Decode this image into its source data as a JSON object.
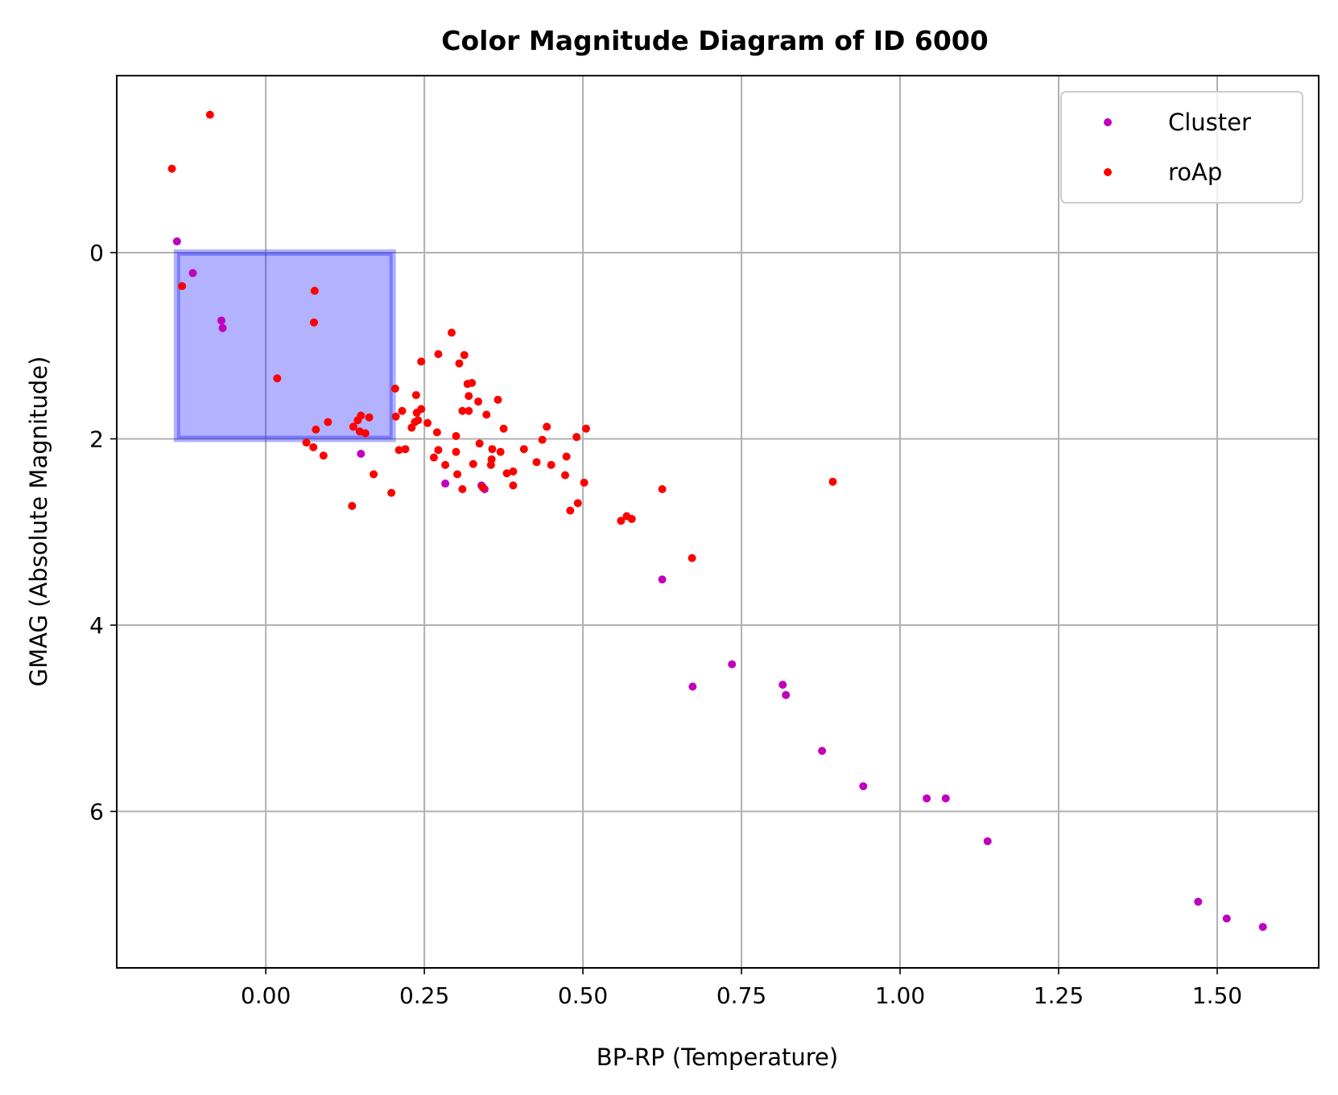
{
  "chart_data": {
    "type": "scatter",
    "title": "Color Magnitude Diagram of ID 6000",
    "xlabel": "BP-RP (Temperature)",
    "ylabel": "GMAG (Absolute Magnitude)",
    "xlim": [
      -0.235,
      1.66
    ],
    "ylim": [
      7.68,
      -1.9
    ],
    "y_inverted": true,
    "grid": true,
    "legend_position": "top-right",
    "xticks": [
      0.0,
      0.25,
      0.5,
      0.75,
      1.0,
      1.25,
      1.5
    ],
    "xtick_labels": [
      "0.00",
      "0.25",
      "0.50",
      "0.75",
      "1.00",
      "1.25",
      "1.50"
    ],
    "yticks": [
      0,
      2,
      4,
      6
    ],
    "ytick_labels": [
      "0",
      "2",
      "4",
      "6"
    ],
    "region": {
      "x0": -0.14,
      "x1": 0.2,
      "y0": 0.0,
      "y1": 2.0,
      "color": "#0000ff",
      "alpha": 0.3
    },
    "series": [
      {
        "name": "Cluster",
        "color": "#bf00bf",
        "points": [
          [
            -0.14,
            -0.12
          ],
          [
            -0.115,
            0.22
          ],
          [
            -0.07,
            0.73
          ],
          [
            -0.068,
            0.81
          ],
          [
            0.15,
            2.16
          ],
          [
            0.283,
            2.48
          ],
          [
            0.34,
            2.5
          ],
          [
            0.345,
            2.54
          ],
          [
            0.625,
            3.51
          ],
          [
            0.673,
            4.66
          ],
          [
            0.735,
            4.42
          ],
          [
            0.815,
            4.64
          ],
          [
            0.82,
            4.75
          ],
          [
            0.877,
            5.35
          ],
          [
            0.942,
            5.73
          ],
          [
            1.042,
            5.86
          ],
          [
            1.072,
            5.86
          ],
          [
            1.138,
            6.32
          ],
          [
            1.47,
            6.97
          ],
          [
            1.515,
            7.15
          ],
          [
            1.572,
            7.24
          ]
        ]
      },
      {
        "name": "roAp",
        "color": "#ff0000",
        "points": [
          [
            -0.148,
            -0.9
          ],
          [
            -0.088,
            -1.48
          ],
          [
            -0.132,
            0.36
          ],
          [
            0.077,
            0.41
          ],
          [
            0.076,
            0.75
          ],
          [
            0.018,
            1.35
          ],
          [
            0.098,
            1.82
          ],
          [
            0.079,
            1.9
          ],
          [
            0.064,
            2.04
          ],
          [
            0.075,
            2.09
          ],
          [
            0.091,
            2.18
          ],
          [
            0.138,
            1.87
          ],
          [
            0.145,
            1.8
          ],
          [
            0.15,
            1.75
          ],
          [
            0.157,
            1.94
          ],
          [
            0.163,
            1.77
          ],
          [
            0.148,
            1.92
          ],
          [
            0.17,
            2.38
          ],
          [
            0.136,
            2.72
          ],
          [
            0.198,
            2.58
          ],
          [
            0.204,
            1.46
          ],
          [
            0.205,
            1.76
          ],
          [
            0.21,
            2.12
          ],
          [
            0.215,
            1.7
          ],
          [
            0.22,
            2.11
          ],
          [
            0.23,
            1.88
          ],
          [
            0.235,
            1.82
          ],
          [
            0.237,
            1.53
          ],
          [
            0.238,
            1.72
          ],
          [
            0.24,
            1.8
          ],
          [
            0.245,
            1.68
          ],
          [
            0.245,
            1.17
          ],
          [
            0.255,
            1.83
          ],
          [
            0.265,
            2.2
          ],
          [
            0.27,
            1.93
          ],
          [
            0.272,
            2.12
          ],
          [
            0.272,
            1.09
          ],
          [
            0.283,
            2.28
          ],
          [
            0.293,
            0.86
          ],
          [
            0.3,
            2.14
          ],
          [
            0.3,
            1.97
          ],
          [
            0.302,
            2.38
          ],
          [
            0.305,
            1.19
          ],
          [
            0.31,
            2.54
          ],
          [
            0.31,
            1.7
          ],
          [
            0.313,
            1.1
          ],
          [
            0.318,
            1.41
          ],
          [
            0.32,
            1.54
          ],
          [
            0.32,
            1.7
          ],
          [
            0.325,
            1.4
          ],
          [
            0.327,
            2.27
          ],
          [
            0.335,
            1.6
          ],
          [
            0.337,
            2.05
          ],
          [
            0.342,
            2.52
          ],
          [
            0.348,
            1.74
          ],
          [
            0.355,
            2.28
          ],
          [
            0.356,
            2.22
          ],
          [
            0.357,
            2.11
          ],
          [
            0.366,
            1.58
          ],
          [
            0.37,
            2.14
          ],
          [
            0.375,
            1.89
          ],
          [
            0.38,
            2.37
          ],
          [
            0.39,
            2.35
          ],
          [
            0.39,
            2.5
          ],
          [
            0.407,
            2.11
          ],
          [
            0.427,
            2.25
          ],
          [
            0.436,
            2.01
          ],
          [
            0.443,
            1.87
          ],
          [
            0.45,
            2.28
          ],
          [
            0.472,
            2.39
          ],
          [
            0.474,
            2.19
          ],
          [
            0.48,
            2.77
          ],
          [
            0.49,
            1.98
          ],
          [
            0.492,
            2.69
          ],
          [
            0.502,
            2.47
          ],
          [
            0.505,
            1.89
          ],
          [
            0.56,
            2.88
          ],
          [
            0.569,
            2.83
          ],
          [
            0.577,
            2.86
          ],
          [
            0.625,
            2.54
          ],
          [
            0.672,
            3.28
          ],
          [
            0.894,
            2.46
          ]
        ]
      }
    ]
  }
}
